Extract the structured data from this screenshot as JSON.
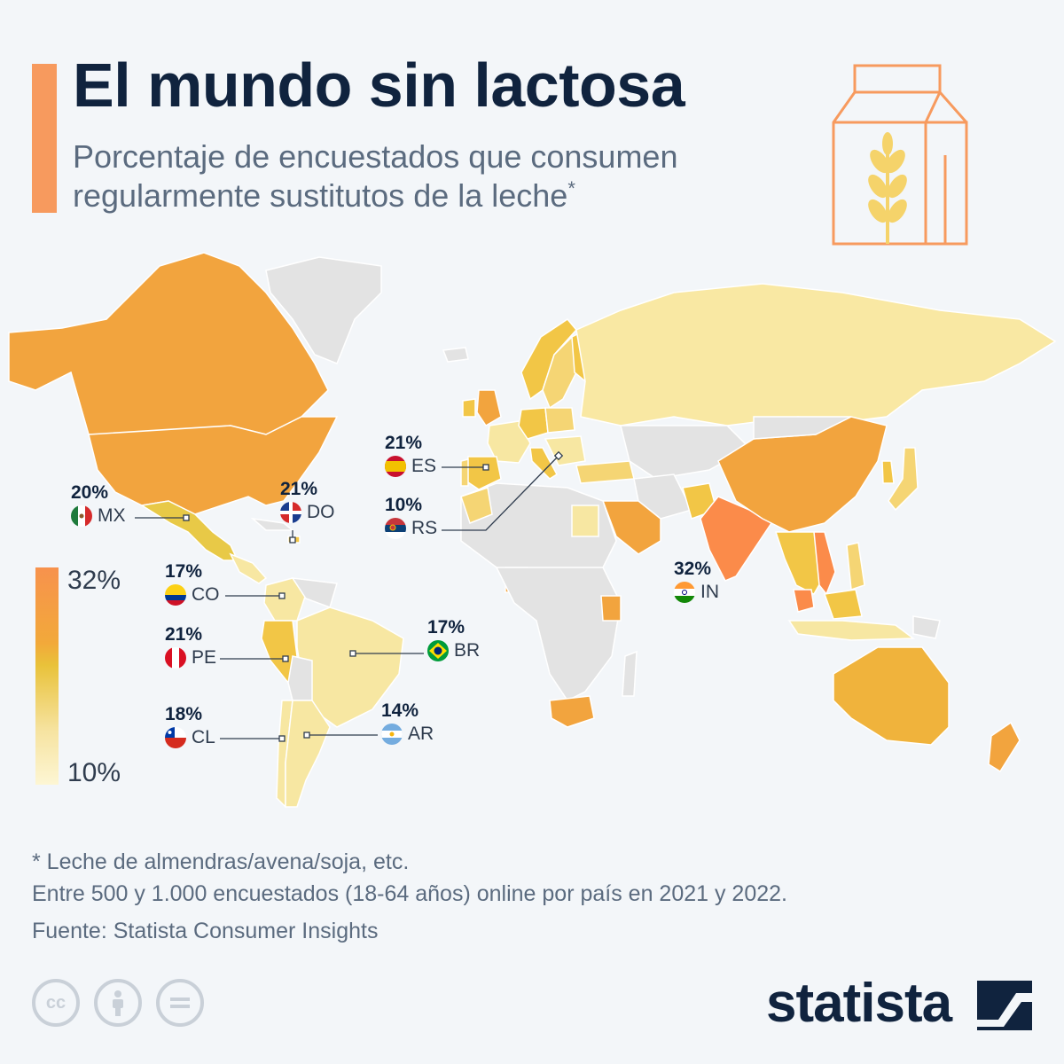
{
  "header": {
    "title": "El mundo sin lactosa",
    "subtitle": "Porcentaje de encuestados que consumen regularmente sustitutos de la leche",
    "subtitle_mark": "*"
  },
  "legend": {
    "max_label": "32%",
    "min_label": "10%",
    "colors": {
      "high": "#f7924d",
      "mid": "#e9c23a",
      "low": "#fdf6d4",
      "no_data": "#e6e6e6"
    }
  },
  "callouts": [
    {
      "code": "MX",
      "value": "20%",
      "flag": "mexico-flag-icon"
    },
    {
      "code": "DO",
      "value": "21%",
      "flag": "dominican-republic-flag-icon"
    },
    {
      "code": "ES",
      "value": "21%",
      "flag": "spain-flag-icon"
    },
    {
      "code": "RS",
      "value": "10%",
      "flag": "serbia-flag-icon"
    },
    {
      "code": "IN",
      "value": "32%",
      "flag": "india-flag-icon"
    },
    {
      "code": "CO",
      "value": "17%",
      "flag": "colombia-flag-icon"
    },
    {
      "code": "PE",
      "value": "21%",
      "flag": "peru-flag-icon"
    },
    {
      "code": "BR",
      "value": "17%",
      "flag": "brazil-flag-icon"
    },
    {
      "code": "CL",
      "value": "18%",
      "flag": "chile-flag-icon"
    },
    {
      "code": "AR",
      "value": "14%",
      "flag": "argentina-flag-icon"
    }
  ],
  "footnotes": {
    "note": "* Leche de almendras/avena/soja, etc.",
    "sample": "Entre 500 y 1.000 encuestados (18‑64 años) online por país en 2021 y 2022.",
    "source": "Fuente: Statista Consumer Insights"
  },
  "brand": {
    "name": "statista"
  },
  "license_icons": [
    "cc-icon",
    "attribution-icon",
    "no-derivatives-icon"
  ]
}
